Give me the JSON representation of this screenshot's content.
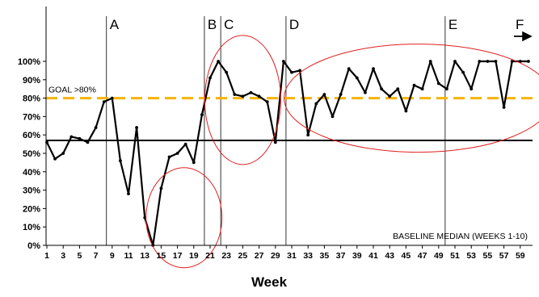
{
  "chart_data": {
    "type": "line",
    "xlabel": "Week",
    "ylabel": "",
    "xlim": [
      1,
      60
    ],
    "ylim": [
      0,
      100
    ],
    "y_ticks": [
      0,
      10,
      20,
      30,
      40,
      50,
      60,
      70,
      80,
      90,
      100
    ],
    "y_tick_labels": [
      "0%",
      "10%",
      "20%",
      "30%",
      "40%",
      "50%",
      "60%",
      "70%",
      "80%",
      "90%",
      "100%"
    ],
    "x_ticks": [
      1,
      3,
      5,
      7,
      9,
      11,
      13,
      15,
      17,
      19,
      21,
      23,
      25,
      27,
      29,
      31,
      33,
      35,
      37,
      39,
      41,
      43,
      45,
      47,
      49,
      51,
      53,
      55,
      57,
      59
    ],
    "x_tick_labels": [
      "1",
      "3",
      "5",
      "7",
      "9",
      "11",
      "13",
      "15",
      "17",
      "19",
      "21",
      "23",
      "25",
      "27",
      "29",
      "31",
      "33",
      "35",
      "37",
      "39",
      "41",
      "43",
      "45",
      "47",
      "49",
      "51",
      "53",
      "55",
      "57",
      "59"
    ],
    "grid": false,
    "series": [
      {
        "color": "#000000",
        "x": [
          1,
          2,
          3,
          4,
          5,
          6,
          7,
          8,
          9,
          10,
          11,
          12,
          13,
          14,
          15,
          16,
          17,
          18,
          19,
          20,
          21,
          22,
          23,
          24,
          25,
          26,
          27,
          28,
          29,
          30,
          31,
          32,
          33,
          34,
          35,
          36,
          37,
          38,
          39,
          40,
          41,
          42,
          43,
          44,
          45,
          46,
          47,
          48,
          49,
          50,
          51,
          52,
          53,
          54,
          55,
          56,
          57,
          58,
          59,
          60
        ],
        "values": [
          56,
          47,
          50,
          59,
          58,
          56,
          64,
          78,
          80,
          46,
          28,
          64,
          15,
          0,
          31,
          48,
          50,
          55,
          45,
          71,
          91,
          100,
          94,
          82,
          81,
          83,
          81,
          78,
          56,
          100,
          94,
          95,
          60,
          77,
          82,
          70,
          82,
          96,
          91,
          83,
          96,
          85,
          81,
          85,
          73,
          87,
          85,
          100,
          88,
          85,
          100,
          94,
          85,
          100,
          100,
          100,
          75,
          100,
          100,
          100
        ]
      }
    ],
    "reference_lines": {
      "goal": {
        "value": 80,
        "label": "GOAL >80%",
        "color": "#f5b400"
      },
      "baseline_median": {
        "value": 57,
        "label": "BASELINE MEDIAN (WEEKS 1-10)",
        "color": "#000000"
      }
    },
    "phase_lines": [
      {
        "x": 8.3,
        "label": "A"
      },
      {
        "x": 20.3,
        "label": "B"
      },
      {
        "x": 22.3,
        "label": "C"
      },
      {
        "x": 30.3,
        "label": "D"
      },
      {
        "x": 49.8,
        "label": "E"
      },
      {
        "x": 60,
        "label": "F"
      }
    ],
    "highlight_ellipses": [
      {
        "center_x": 17.8,
        "center_y": 15,
        "color": "#e02020"
      },
      {
        "center_x": 25,
        "center_y": 79,
        "color": "#e02020"
      },
      {
        "center_x": 46.5,
        "center_y": 80,
        "color": "#e02020"
      }
    ],
    "axis_color": "#000000"
  }
}
